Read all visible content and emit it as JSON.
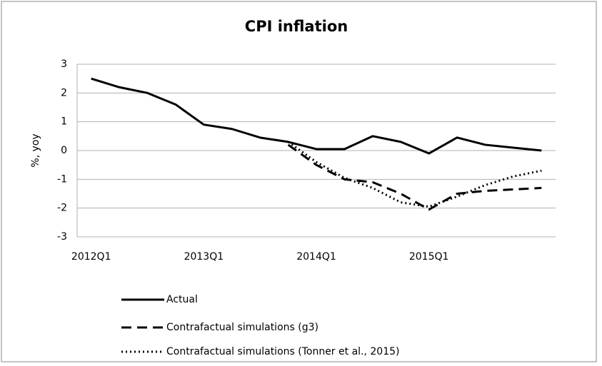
{
  "chart_data": {
    "type": "line",
    "title": "CPI inflation",
    "y_label": "%, yoy",
    "categories": [
      "2012Q1",
      null,
      null,
      null,
      "2013Q1",
      null,
      null,
      null,
      "2014Q1",
      null,
      null,
      null,
      "2015Q1",
      null,
      null,
      null,
      null
    ],
    "series": [
      {
        "name": "Actual",
        "color": "#000000",
        "dash": "solid",
        "values": [
          2.5,
          2.2,
          2.0,
          1.6,
          0.9,
          0.75,
          0.45,
          0.3,
          0.05,
          0.05,
          0.5,
          0.3,
          -0.1,
          0.45,
          0.2,
          0.1,
          0.0
        ]
      },
      {
        "name": "Contrafactual simulations (g3)",
        "color": "#000000",
        "dash": "dashed",
        "values": [
          null,
          null,
          null,
          null,
          null,
          null,
          null,
          0.2,
          -0.5,
          -1.0,
          -1.1,
          -1.5,
          -2.05,
          -1.5,
          -1.4,
          -1.35,
          -1.3
        ]
      },
      {
        "name": "Contrafactual simulations (Tonner et al., 2015)",
        "color": "#000000",
        "dash": "dotted",
        "values": [
          null,
          null,
          null,
          null,
          null,
          null,
          null,
          0.3,
          -0.4,
          -0.95,
          -1.3,
          -1.8,
          -1.95,
          -1.6,
          -1.2,
          -0.9,
          -0.7
        ]
      }
    ],
    "ylim": [
      -3,
      3
    ],
    "yticks": [
      -3,
      -2,
      -1,
      0,
      1,
      2,
      3
    ],
    "grid": true,
    "legend": "bottom"
  }
}
